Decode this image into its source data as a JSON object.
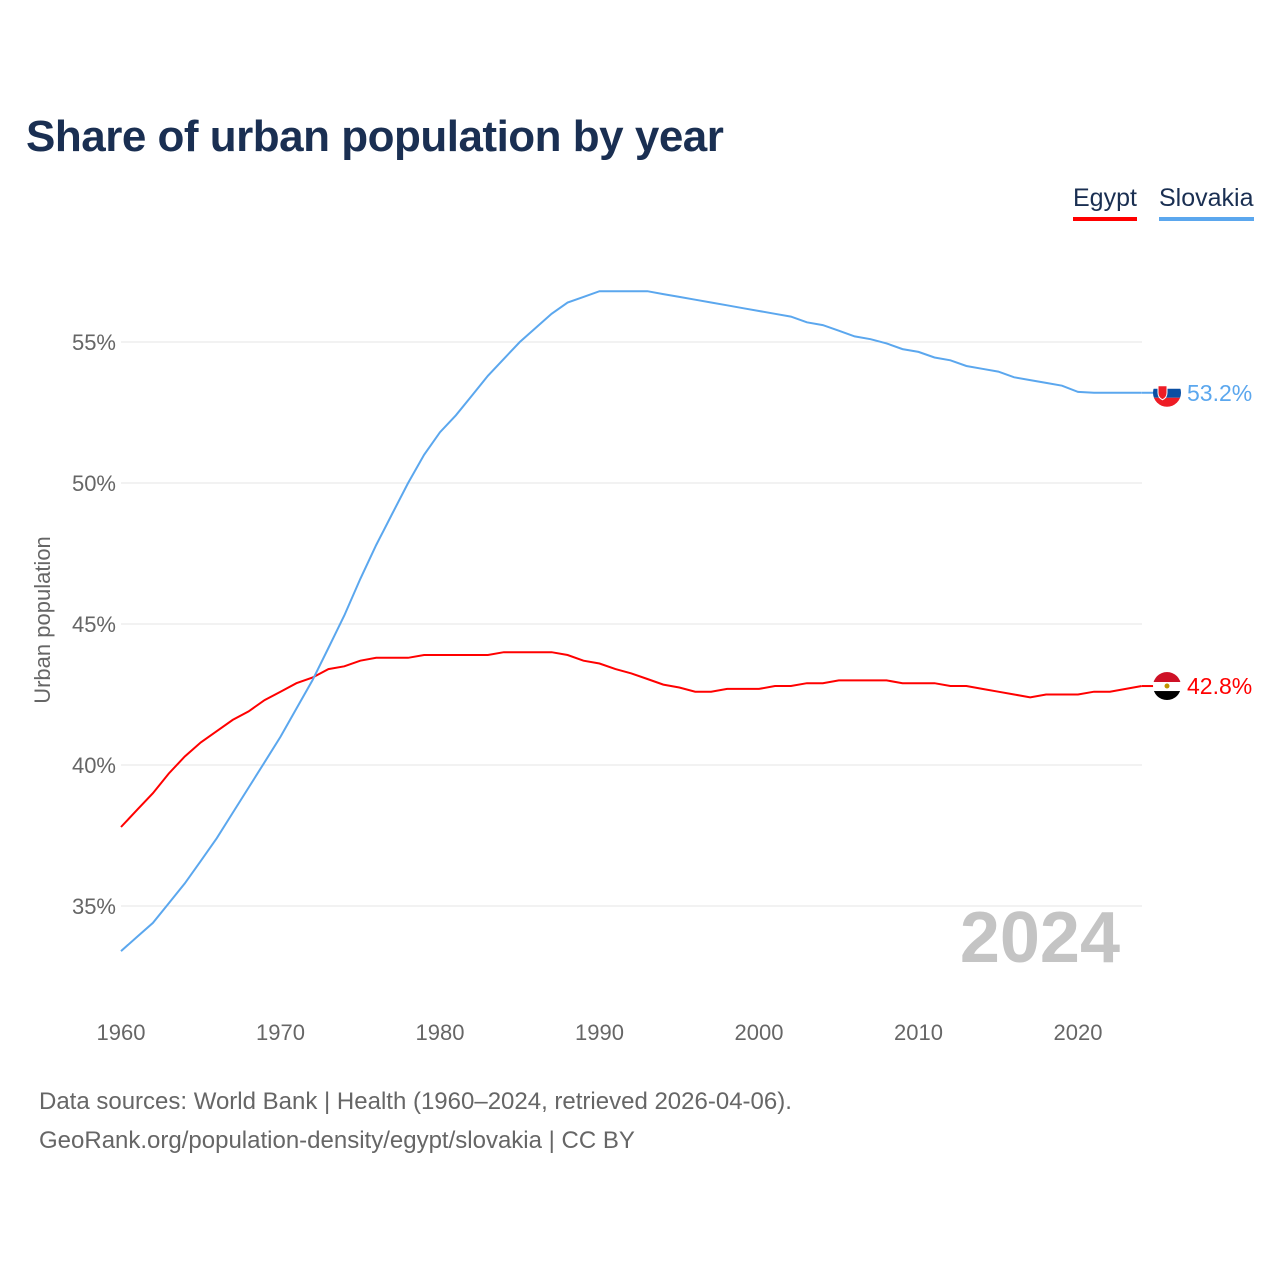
{
  "chart_data": {
    "type": "line",
    "title": "Share of urban population by year",
    "xlabel": "",
    "ylabel": "Urban population",
    "xlim": [
      1960,
      2024
    ],
    "ylim": [
      32.5,
      59
    ],
    "yticks": [
      35,
      40,
      45,
      50,
      55
    ],
    "ytick_labels": [
      "35%",
      "40%",
      "45%",
      "50%",
      "55%"
    ],
    "xticks": [
      1960,
      1970,
      1980,
      1990,
      2000,
      2010,
      2020
    ],
    "xtick_labels": [
      "1960",
      "1970",
      "1980",
      "1990",
      "2000",
      "2010",
      "2020"
    ],
    "grid": "horizontal",
    "legend_position": "top-right",
    "year_watermark": "2024",
    "x": [
      1960,
      1961,
      1962,
      1963,
      1964,
      1965,
      1966,
      1967,
      1968,
      1969,
      1970,
      1971,
      1972,
      1973,
      1974,
      1975,
      1976,
      1977,
      1978,
      1979,
      1980,
      1981,
      1982,
      1983,
      1984,
      1985,
      1986,
      1987,
      1988,
      1989,
      1990,
      1991,
      1992,
      1993,
      1994,
      1995,
      1996,
      1997,
      1998,
      1999,
      2000,
      2001,
      2002,
      2003,
      2004,
      2005,
      2006,
      2007,
      2008,
      2009,
      2010,
      2011,
      2012,
      2013,
      2014,
      2015,
      2016,
      2017,
      2018,
      2019,
      2020,
      2021,
      2022,
      2023,
      2024
    ],
    "series": [
      {
        "name": "Egypt",
        "color": "#ff0000",
        "end_label": "42.8%",
        "values": [
          37.8,
          38.4,
          39.0,
          39.7,
          40.3,
          40.8,
          41.2,
          41.6,
          41.9,
          42.3,
          42.6,
          42.9,
          43.1,
          43.4,
          43.5,
          43.7,
          43.8,
          43.8,
          43.8,
          43.9,
          43.9,
          43.9,
          43.9,
          43.9,
          44.0,
          44.0,
          44.0,
          44.0,
          43.9,
          43.7,
          43.6,
          43.4,
          43.25,
          43.05,
          42.85,
          42.75,
          42.6,
          42.6,
          42.7,
          42.7,
          42.7,
          42.8,
          42.8,
          42.9,
          42.9,
          43.0,
          43.0,
          43.0,
          43.0,
          42.9,
          42.9,
          42.9,
          42.8,
          42.8,
          42.7,
          42.6,
          42.5,
          42.4,
          42.5,
          42.5,
          42.5,
          42.6,
          42.6,
          42.7,
          42.8
        ]
      },
      {
        "name": "Slovakia",
        "color": "#5ba7ee",
        "end_label": "53.2%",
        "values": [
          33.4,
          33.9,
          34.4,
          35.1,
          35.8,
          36.6,
          37.4,
          38.3,
          39.2,
          40.1,
          41.0,
          42.0,
          43.0,
          44.15,
          45.3,
          46.6,
          47.8,
          48.9,
          50.0,
          51.0,
          51.8,
          52.4,
          53.1,
          53.8,
          54.4,
          55.0,
          55.5,
          56.0,
          56.4,
          56.6,
          56.8,
          56.8,
          56.8,
          56.8,
          56.7,
          56.6,
          56.5,
          56.4,
          56.3,
          56.2,
          56.1,
          56.0,
          55.9,
          55.7,
          55.6,
          55.4,
          55.2,
          55.1,
          54.95,
          54.75,
          54.65,
          54.45,
          54.35,
          54.15,
          54.05,
          53.95,
          53.75,
          53.65,
          53.55,
          53.45,
          53.23,
          53.2,
          53.2,
          53.2,
          53.2
        ]
      }
    ]
  },
  "footer": {
    "line1": "Data sources: World Bank | Health (1960–2024, retrieved 2026-04-06).",
    "line2": "GeoRank.org/population-density/egypt/slovakia | CC BY"
  }
}
